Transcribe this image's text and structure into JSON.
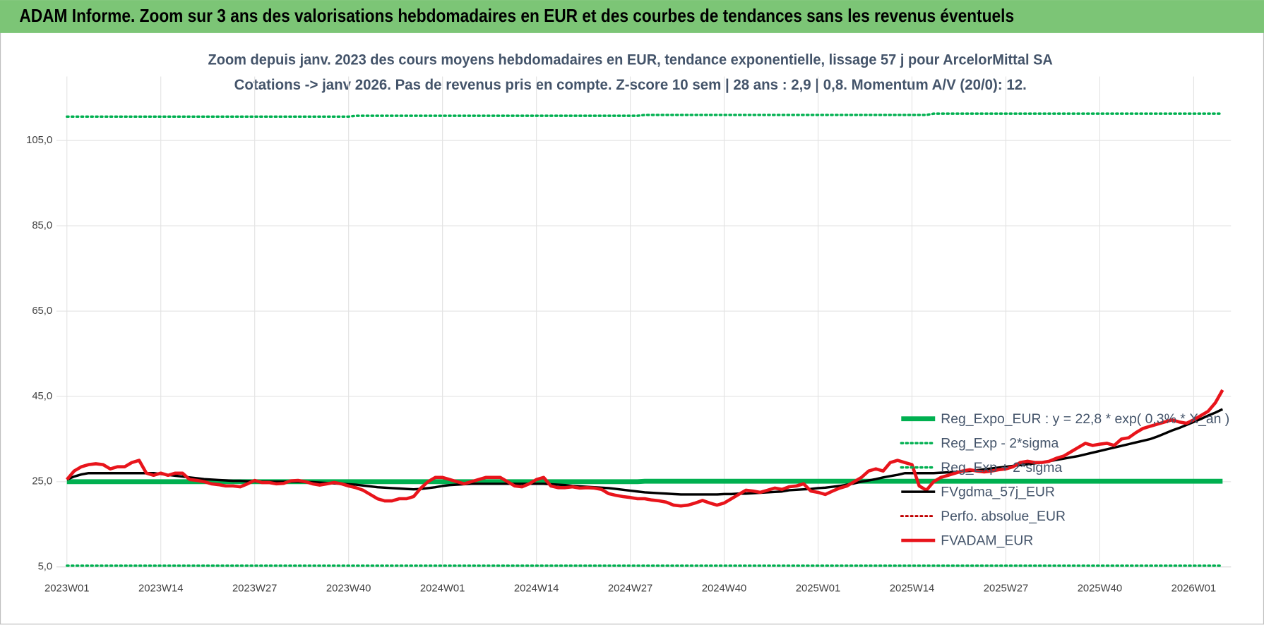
{
  "header": {
    "title": "ADAM Informe. Zoom sur 3 ans des valorisations hebdomadaires en EUR et des courbes de tendances sans les revenus éventuels"
  },
  "chart_data": {
    "type": "line",
    "title": "Zoom depuis janv. 2023 des cours moyens hebdomadaires en EUR, tendance exponentielle, lissage 57 j pour ArcelorMittal SA",
    "subtitle": "Cotations -> janv 2026. Pas de revenus pris en compte. Z-score 10 sem | 28 ans : 2,9 | 0,8. Momentum A/V (20/0): 12.",
    "categories": [
      "2023W01",
      null,
      null,
      null,
      null,
      null,
      null,
      null,
      null,
      null,
      null,
      null,
      null,
      "2023W14",
      null,
      null,
      null,
      null,
      null,
      null,
      null,
      null,
      null,
      null,
      null,
      null,
      "2023W27",
      null,
      null,
      null,
      null,
      null,
      null,
      null,
      null,
      null,
      null,
      null,
      null,
      "2023W40",
      null,
      null,
      null,
      null,
      null,
      null,
      null,
      null,
      null,
      null,
      null,
      null,
      "2024W01",
      null,
      null,
      null,
      null,
      null,
      null,
      null,
      null,
      null,
      null,
      null,
      null,
      "2024W14",
      null,
      null,
      null,
      null,
      null,
      null,
      null,
      null,
      null,
      null,
      null,
      null,
      "2024W27",
      null,
      null,
      null,
      null,
      null,
      null,
      null,
      null,
      null,
      null,
      null,
      null,
      "2024W40",
      null,
      null,
      null,
      null,
      null,
      null,
      null,
      null,
      null,
      null,
      null,
      null,
      "2025W01",
      null,
      null,
      null,
      null,
      null,
      null,
      null,
      null,
      null,
      null,
      null,
      null,
      "2025W14",
      null,
      null,
      null,
      null,
      null,
      null,
      null,
      null,
      null,
      null,
      null,
      null,
      "2025W27",
      null,
      null,
      null,
      null,
      null,
      null,
      null,
      null,
      null,
      null,
      null,
      null,
      "2025W40",
      null,
      null,
      null,
      null,
      null,
      null,
      null,
      null,
      null,
      null,
      null,
      null,
      "2026W01",
      null,
      null,
      null,
      null
    ],
    "ylim": [
      5,
      120
    ],
    "yticks": [
      {
        "value": 5,
        "label": "5,0"
      },
      {
        "value": 25,
        "label": "25,0"
      },
      {
        "value": 45,
        "label": "45,0"
      },
      {
        "value": 65,
        "label": "65,0"
      },
      {
        "value": 85,
        "label": "85,0"
      },
      {
        "value": 105,
        "label": "105,0"
      }
    ],
    "grid": true,
    "legend": "lower-right",
    "series": [
      {
        "name": "Reg_Expo_EUR : y = 22,8 * exp( 0,3% * X_an )",
        "color": "#00b050",
        "style": "solid",
        "values": [
          25,
          25,
          25,
          25,
          25,
          25,
          25,
          25,
          25,
          25,
          25,
          25,
          25,
          25,
          25,
          25,
          25,
          25,
          25,
          25,
          25,
          25,
          25,
          25,
          25,
          25,
          25,
          25,
          25,
          25,
          25,
          25,
          25,
          25,
          25,
          25,
          25,
          25,
          25,
          25,
          25,
          25,
          25,
          25,
          25,
          25,
          25,
          25,
          25,
          25,
          25,
          25,
          25,
          25,
          25,
          25,
          25,
          25,
          25,
          25,
          25,
          25,
          25,
          25,
          25,
          25,
          25,
          25,
          25,
          25,
          25,
          25,
          25,
          25,
          25,
          25,
          25,
          25,
          25,
          25,
          25.1,
          25.1,
          25.1,
          25.1,
          25.1,
          25.1,
          25.1,
          25.1,
          25.1,
          25.1,
          25.1,
          25.1,
          25.1,
          25.1,
          25.1,
          25.1,
          25.1,
          25.1,
          25.1,
          25.1,
          25.1,
          25.1,
          25.1,
          25.1,
          25.1,
          25.1,
          25.1,
          25.1,
          25.1,
          25.1,
          25.1,
          25.1,
          25.1,
          25.1,
          25.1,
          25.1,
          25.1,
          25.1,
          25.1,
          25.1,
          25.1,
          25.1,
          25.1,
          25.1,
          25.1,
          25.1,
          25.1,
          25.1,
          25.1,
          25.1,
          25.1,
          25.1,
          25.1,
          25.1,
          25.1,
          25.1,
          25.1,
          25.1,
          25.1,
          25.1,
          25.1,
          25.1,
          25.1,
          25.1,
          25.1,
          25.1,
          25.1,
          25.1,
          25.1,
          25.1,
          25.1,
          25.1,
          25.1,
          25.1,
          25.1,
          25.1,
          25.1,
          25.1,
          25.1,
          25.1,
          25.1
        ]
      },
      {
        "name": "Reg_Exp - 2*sigma",
        "color": "#00b050",
        "style": "dotted",
        "values": [
          5.3,
          5.3,
          5.3,
          5.3,
          5.3,
          5.3,
          5.3,
          5.3,
          5.3,
          5.3,
          5.3,
          5.3,
          5.3,
          5.3,
          5.3,
          5.3,
          5.3,
          5.3,
          5.3,
          5.3,
          5.3,
          5.3,
          5.3,
          5.3,
          5.3,
          5.3,
          5.3,
          5.3,
          5.3,
          5.3,
          5.3,
          5.3,
          5.3,
          5.3,
          5.3,
          5.3,
          5.3,
          5.3,
          5.3,
          5.3,
          5.3,
          5.3,
          5.3,
          5.3,
          5.3,
          5.3,
          5.3,
          5.3,
          5.3,
          5.3,
          5.3,
          5.3,
          5.3,
          5.3,
          5.3,
          5.3,
          5.3,
          5.3,
          5.3,
          5.3,
          5.3,
          5.3,
          5.3,
          5.3,
          5.3,
          5.3,
          5.3,
          5.3,
          5.3,
          5.3,
          5.3,
          5.3,
          5.3,
          5.3,
          5.3,
          5.3,
          5.3,
          5.3,
          5.3,
          5.3,
          5.3,
          5.3,
          5.3,
          5.3,
          5.3,
          5.3,
          5.3,
          5.3,
          5.3,
          5.3,
          5.3,
          5.3,
          5.3,
          5.3,
          5.3,
          5.3,
          5.3,
          5.3,
          5.3,
          5.3,
          5.3,
          5.3,
          5.3,
          5.3,
          5.3,
          5.3,
          5.3,
          5.3,
          5.3,
          5.3,
          5.3,
          5.3,
          5.3,
          5.3,
          5.3,
          5.3,
          5.3,
          5.3,
          5.3,
          5.3,
          5.3,
          5.3,
          5.3,
          5.3,
          5.3,
          5.3,
          5.3,
          5.3,
          5.3,
          5.3,
          5.3,
          5.3,
          5.3,
          5.3,
          5.3,
          5.3,
          5.3,
          5.3,
          5.3,
          5.3,
          5.3,
          5.3,
          5.3,
          5.3,
          5.3,
          5.3,
          5.3,
          5.3,
          5.3,
          5.3,
          5.3,
          5.3,
          5.3,
          5.3,
          5.3,
          5.3,
          5.3,
          5.3,
          5.3,
          5.3,
          5.3
        ]
      },
      {
        "name": "Reg_Exp + 2*sigma",
        "color": "#00b050",
        "style": "dotted",
        "values": [
          110.6,
          110.6,
          110.6,
          110.6,
          110.6,
          110.6,
          110.6,
          110.6,
          110.6,
          110.6,
          110.6,
          110.6,
          110.6,
          110.6,
          110.6,
          110.6,
          110.6,
          110.6,
          110.6,
          110.6,
          110.6,
          110.6,
          110.6,
          110.6,
          110.6,
          110.6,
          110.6,
          110.6,
          110.6,
          110.6,
          110.6,
          110.6,
          110.6,
          110.6,
          110.6,
          110.6,
          110.6,
          110.6,
          110.6,
          110.6,
          110.8,
          110.8,
          110.8,
          110.8,
          110.8,
          110.8,
          110.8,
          110.8,
          110.8,
          110.8,
          110.8,
          110.8,
          110.8,
          110.8,
          110.8,
          110.8,
          110.8,
          110.8,
          110.8,
          110.8,
          110.8,
          110.8,
          110.8,
          110.8,
          110.8,
          110.8,
          110.8,
          110.8,
          110.8,
          110.8,
          110.8,
          110.8,
          110.8,
          110.8,
          110.8,
          110.8,
          110.8,
          110.8,
          110.8,
          110.8,
          111,
          111,
          111,
          111,
          111,
          111,
          111,
          111,
          111,
          111,
          111,
          111,
          111,
          111,
          111,
          111,
          111,
          111,
          111,
          111,
          111,
          111,
          111,
          111,
          111,
          111,
          111,
          111,
          111,
          111,
          111,
          111,
          111,
          111,
          111,
          111,
          111,
          111,
          111,
          111,
          111.3,
          111.3,
          111.3,
          111.3,
          111.3,
          111.3,
          111.3,
          111.3,
          111.3,
          111.3,
          111.3,
          111.3,
          111.3,
          111.3,
          111.3,
          111.3,
          111.3,
          111.3,
          111.3,
          111.3,
          111.3,
          111.3,
          111.3,
          111.3,
          111.3,
          111.3,
          111.3,
          111.3,
          111.3,
          111.3,
          111.3,
          111.3,
          111.3,
          111.3,
          111.3,
          111.3,
          111.3,
          111.3,
          111.3,
          111.3,
          111.3
        ]
      },
      {
        "name": "FVgdma_57j_EUR",
        "color": "#000000",
        "style": "solid",
        "values": [
          25.5,
          26.2,
          26.7,
          27,
          27,
          27,
          27,
          27,
          27,
          27,
          27,
          27,
          27,
          26.8,
          26.6,
          26.4,
          26.2,
          26,
          25.8,
          25.6,
          25.5,
          25.4,
          25.3,
          25.2,
          25.2,
          25.1,
          25.1,
          25,
          25,
          25,
          25,
          25,
          25,
          24.9,
          24.9,
          24.8,
          24.7,
          24.6,
          24.5,
          24.4,
          24.3,
          24.1,
          23.9,
          23.7,
          23.6,
          23.5,
          23.4,
          23.3,
          23.2,
          23.3,
          23.5,
          23.7,
          24,
          24.2,
          24.3,
          24.4,
          24.5,
          24.5,
          24.5,
          24.5,
          24.5,
          24.5,
          24.5,
          24.5,
          24.5,
          24.5,
          24.5,
          24.4,
          24.3,
          24.2,
          24,
          23.9,
          23.8,
          23.7,
          23.6,
          23.5,
          23.3,
          23.1,
          22.9,
          22.7,
          22.5,
          22.4,
          22.3,
          22.2,
          22.1,
          22,
          22,
          22,
          22,
          22,
          22,
          22.1,
          22.1,
          22.2,
          22.2,
          22.3,
          22.4,
          22.5,
          22.6,
          22.7,
          23,
          23.1,
          23.2,
          23.3,
          23.5,
          23.6,
          23.8,
          24,
          24.3,
          24.6,
          25,
          25.3,
          25.6,
          26,
          26.3,
          26.6,
          27,
          27,
          27,
          27,
          27,
          27.1,
          27.2,
          27.3,
          27.4,
          27.5,
          27.7,
          27.9,
          28.1,
          28.3,
          28.5,
          28.7,
          28.9,
          29.1,
          29.3,
          29.5,
          29.8,
          30.1,
          30.4,
          30.7,
          31,
          31.4,
          31.8,
          32.2,
          32.6,
          33,
          33.4,
          33.8,
          34.2,
          34.6,
          35,
          35.6,
          36.3,
          37,
          37.6,
          38.3,
          39,
          39.7,
          40.5,
          41.2,
          42
        ]
      },
      {
        "name": "Perfo. absolue_EUR",
        "color": "#c00000",
        "style": "dotted",
        "values": [
          null,
          null,
          null,
          null,
          null,
          null,
          null,
          null,
          null,
          null,
          null,
          null,
          null,
          null,
          null,
          null,
          null,
          null,
          null,
          null,
          null,
          null,
          null,
          null,
          null,
          null,
          null,
          null,
          null,
          null,
          null,
          null,
          null,
          null,
          null,
          null,
          null,
          null,
          null,
          null,
          null,
          null,
          null,
          null,
          null,
          null,
          null,
          null,
          null,
          null,
          null,
          null,
          null,
          null,
          null,
          null,
          null,
          null,
          null,
          null,
          null,
          null,
          null,
          null,
          null,
          null,
          null,
          null,
          null,
          null,
          null,
          null,
          null,
          null,
          null,
          null,
          null,
          null,
          null,
          null,
          null,
          null,
          null,
          null,
          null,
          null,
          null,
          null,
          null,
          null,
          null,
          null,
          null,
          null,
          null,
          null,
          null,
          null,
          null,
          null,
          null,
          null,
          null,
          null,
          null,
          null,
          null,
          null,
          null,
          null,
          null,
          null,
          null,
          null,
          null,
          null,
          null,
          null,
          null,
          null,
          null,
          null,
          null,
          null,
          null,
          null,
          null,
          null,
          null,
          null,
          null,
          null,
          null,
          null,
          null,
          null,
          null,
          null,
          null,
          null,
          null,
          null,
          null,
          null,
          null,
          null,
          null,
          null,
          null,
          null,
          null,
          null,
          null,
          null,
          null,
          null,
          null,
          null,
          null,
          null,
          null
        ]
      },
      {
        "name": "FVADAM_EUR",
        "color": "#e8141b",
        "style": "solid",
        "values": [
          25.5,
          27.5,
          28.5,
          29,
          29.2,
          29,
          28,
          28.5,
          28.5,
          29.5,
          30,
          27,
          26.5,
          27,
          26.5,
          27,
          27,
          25.5,
          25.3,
          25,
          24.5,
          24.3,
          24,
          24,
          23.8,
          24.5,
          25.3,
          24.8,
          24.8,
          24.5,
          24.6,
          25.2,
          25.3,
          25,
          24.5,
          24.2,
          24.5,
          24.8,
          24.5,
          24,
          23.6,
          23,
          22,
          21,
          20.5,
          20.5,
          21,
          21,
          21.5,
          23.5,
          25,
          26,
          26,
          25.5,
          25,
          24.5,
          25,
          25.5,
          26,
          26,
          26,
          25,
          24,
          23.8,
          24.5,
          25.5,
          26,
          24,
          23.6,
          23.6,
          23.8,
          23.5,
          23.6,
          23.5,
          23.2,
          22.2,
          21.8,
          21.5,
          21.3,
          21,
          21,
          20.7,
          20.5,
          20.2,
          19.5,
          19.3,
          19.5,
          20,
          20.6,
          20,
          19.5,
          20,
          21,
          22,
          23,
          22.8,
          22.5,
          23,
          23.5,
          23.2,
          23.8,
          24,
          24.5,
          22.8,
          22.5,
          22,
          22.8,
          23.5,
          24,
          25,
          26,
          27.5,
          28,
          27.5,
          29.5,
          30,
          29.5,
          29,
          24,
          23,
          25,
          26,
          26.5,
          27,
          27.5,
          27.8,
          27.5,
          27.3,
          27.5,
          27.8,
          28,
          28.5,
          29.5,
          29.8,
          29.5,
          29.5,
          29.8,
          30.5,
          31,
          32,
          33,
          34,
          33.5,
          33.8,
          34,
          33.5,
          35,
          35.3,
          36.5,
          37.5,
          38,
          38.5,
          39,
          39.5,
          39,
          38.7,
          39.5,
          40.5,
          41.5,
          43.5,
          46.5
        ]
      }
    ]
  }
}
